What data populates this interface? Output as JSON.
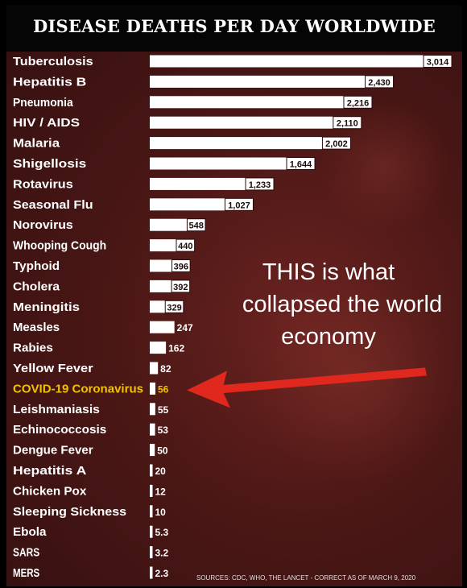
{
  "chart_data": {
    "type": "bar",
    "orientation": "horizontal",
    "title": "DISEASE DEATHS PER DAY WORLDWIDE",
    "categories": [
      "Tuberculosis",
      "Hepatitis B",
      "Pneumonia",
      "HIV / AIDS",
      "Malaria",
      "Shigellosis",
      "Rotavirus",
      "Seasonal Flu",
      "Norovirus",
      "Whooping Cough",
      "Typhoid",
      "Cholera",
      "Meningitis",
      "Measles",
      "Rabies",
      "Yellow Fever",
      "COVID-19 Coronavirus",
      "Leishmaniasis",
      "Echinococcosis",
      "Dengue Fever",
      "Hepatitis A",
      "Chicken Pox",
      "Sleeping Sickness",
      "Ebola",
      "SARS",
      "MERS"
    ],
    "value_labels": [
      "3,014",
      "2,430",
      "2,216",
      "2,110",
      "2,002",
      "1,644",
      "1,233",
      "1,027",
      "548",
      "440",
      "396",
      "392",
      "329",
      "247",
      "162",
      "82",
      "56",
      "55",
      "53",
      "50",
      "20",
      "12",
      "10",
      "5.3",
      "3.2",
      "2.3"
    ],
    "values": [
      3014,
      2430,
      2216,
      2110,
      2002,
      1644,
      1233,
      1027,
      548,
      440,
      396,
      392,
      329,
      247,
      162,
      82,
      56,
      55,
      53,
      50,
      20,
      12,
      10,
      5.3,
      3.2,
      2.3
    ],
    "highlight_category": "COVID-19 Coronavirus",
    "xlim": [
      0,
      3014
    ],
    "grid": false,
    "legend": "none",
    "colors": {
      "bar": "#ffffff",
      "label": "#ffffff",
      "highlight_label": "#f2c200",
      "arrow": "#e0281e",
      "background": "#4a1715"
    }
  },
  "annotation": {
    "line1": "THIS is what",
    "line2": "collapsed the world",
    "line3": "economy"
  },
  "sources": "SOURCES: CDC, WHO, THE LANCET - CORRECT AS OF MARCH 9, 2020"
}
